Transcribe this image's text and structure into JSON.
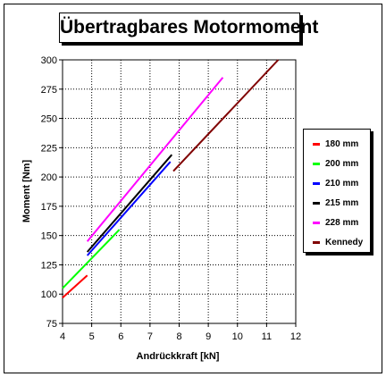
{
  "chart_data": {
    "type": "line",
    "title": "Übertragbares Motormoment",
    "xlabel": "Andrückkraft [kN]",
    "ylabel": "Moment [Nm]",
    "xlim": [
      4,
      12
    ],
    "ylim": [
      75,
      300
    ],
    "x_ticks": [
      4,
      5,
      6,
      7,
      8,
      9,
      10,
      11,
      12
    ],
    "y_ticks": [
      75,
      100,
      125,
      150,
      175,
      200,
      225,
      250,
      275,
      300
    ],
    "x_tick_labels": [
      "4",
      "5",
      "6",
      "7",
      "8",
      "9",
      "10",
      "11",
      "12"
    ],
    "y_tick_labels": [
      "75",
      "100",
      "125",
      "150",
      "175",
      "200",
      "225",
      "250",
      "275",
      "300"
    ],
    "grid": true,
    "legend_position": "right",
    "series": [
      {
        "name": "180 mm",
        "color": "#ff0000",
        "x": [
          4.0,
          4.85
        ],
        "y": [
          97,
          116
        ]
      },
      {
        "name": "200 mm",
        "color": "#00ff00",
        "x": [
          4.0,
          5.95
        ],
        "y": [
          105,
          155
        ]
      },
      {
        "name": "210 mm",
        "color": "#0000ff",
        "x": [
          4.85,
          7.7
        ],
        "y": [
          133,
          213
        ]
      },
      {
        "name": "215 mm",
        "color": "#000000",
        "x": [
          4.85,
          7.75
        ],
        "y": [
          136,
          219
        ]
      },
      {
        "name": "228 mm",
        "color": "#ff00ff",
        "x": [
          4.85,
          9.5
        ],
        "y": [
          145,
          285
        ]
      },
      {
        "name": "Kennedy",
        "color": "#800000",
        "x": [
          7.8,
          11.4
        ],
        "y": [
          205,
          300
        ]
      }
    ]
  }
}
